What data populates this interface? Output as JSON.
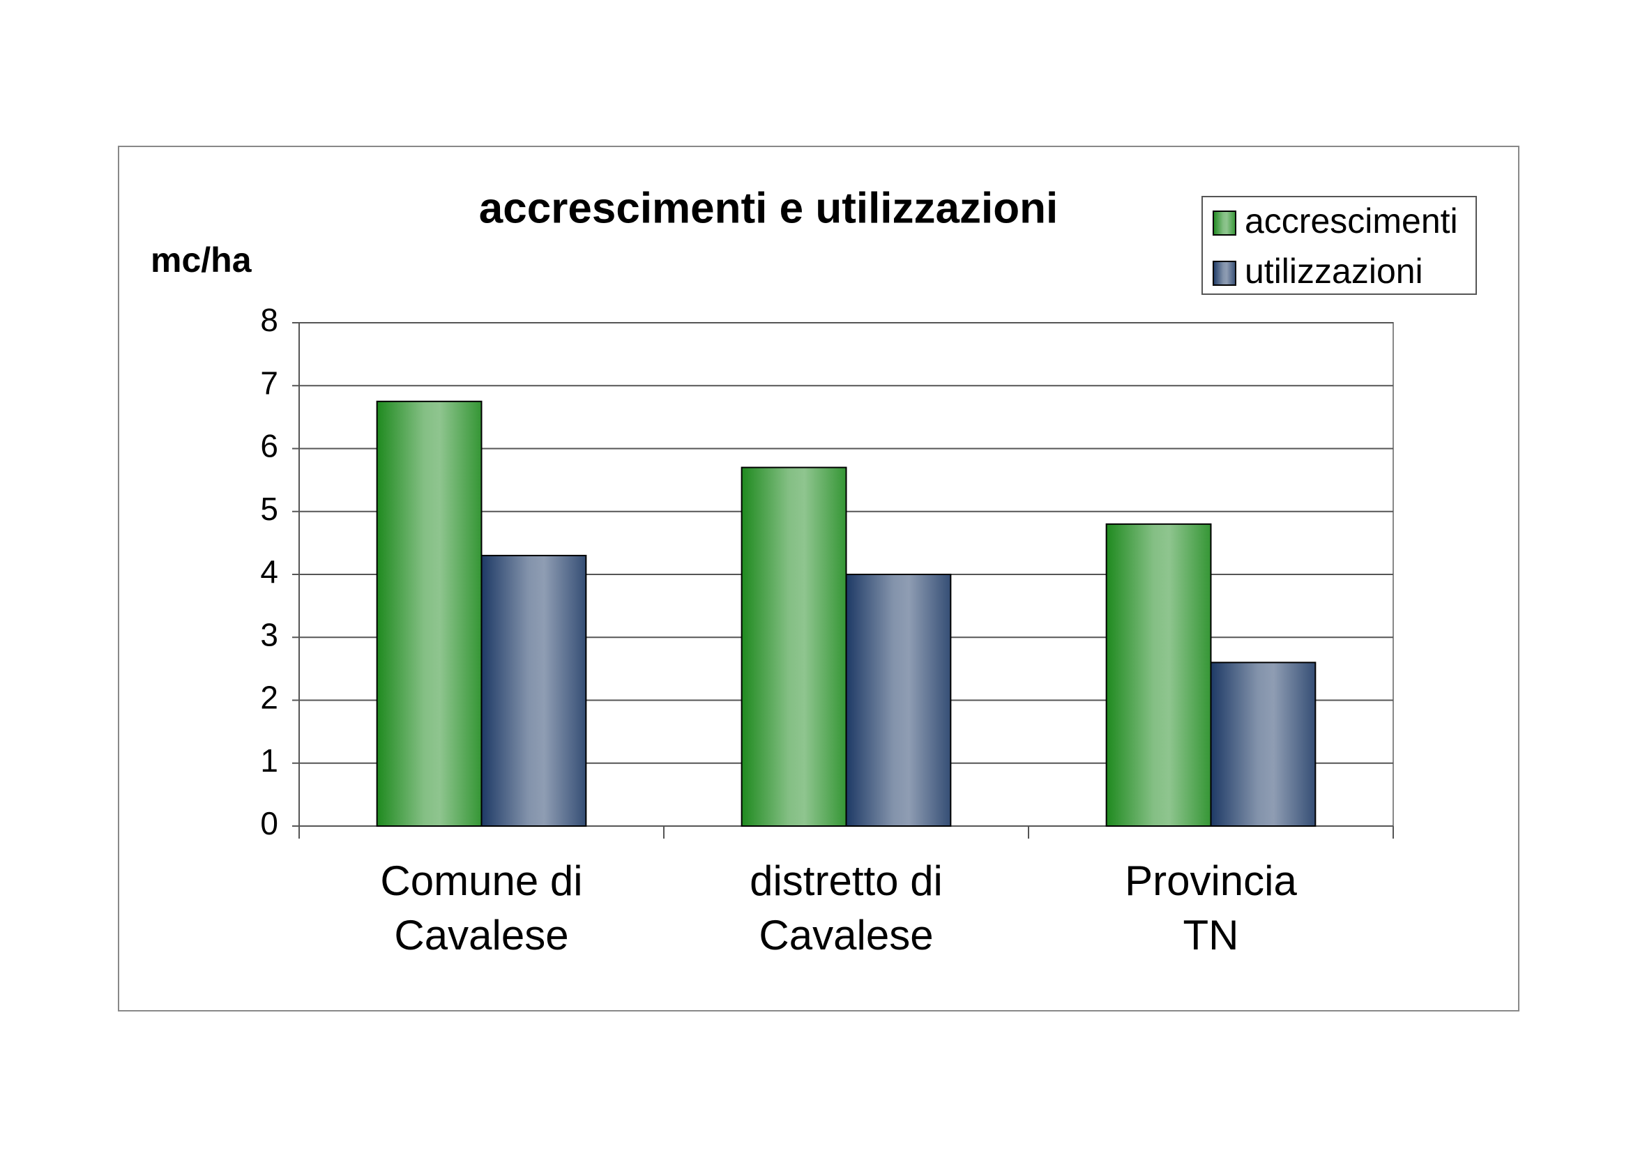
{
  "chart_data": {
    "type": "bar",
    "title": "accrescimenti e utilizzazioni",
    "y_label": "mc/ha",
    "categories": [
      "Comune di Cavalese",
      "distretto di Cavalese",
      "Provincia TN"
    ],
    "series": [
      {
        "name": "accrescimenti",
        "color": "#1f8a1f",
        "values": [
          6.75,
          5.7,
          4.8
        ]
      },
      {
        "name": "utilizzazioni",
        "color": "#1e3a66",
        "values": [
          4.3,
          4.0,
          2.6
        ]
      }
    ],
    "ylim": [
      0,
      8
    ],
    "yticks": [
      0,
      1,
      2,
      3,
      4,
      5,
      6,
      7,
      8
    ],
    "grid": true,
    "legend": "top-right"
  }
}
